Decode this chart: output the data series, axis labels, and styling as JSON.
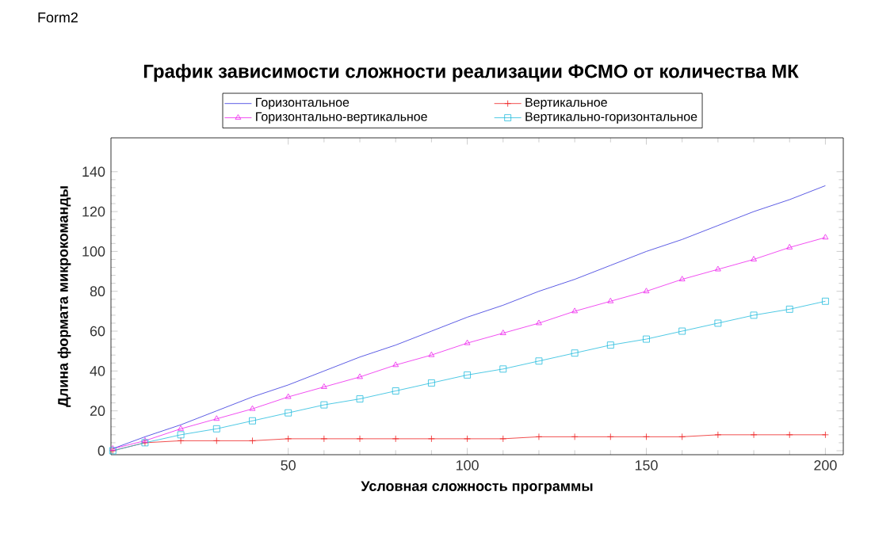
{
  "chart_data": {
    "type": "line",
    "title": "График зависимости сложности реализации ФСМО от количества МК",
    "xlabel": "Условная сложность программы",
    "ylabel": "Длина формата микрокоманды",
    "annotations": [
      "Form2"
    ],
    "x": [
      1,
      10,
      20,
      30,
      40,
      50,
      60,
      70,
      80,
      90,
      100,
      110,
      120,
      130,
      140,
      150,
      160,
      170,
      180,
      190,
      200
    ],
    "series": [
      {
        "name": "Горизонтальное",
        "color": "#3333dd",
        "marker": "none",
        "values": [
          1,
          7,
          13,
          20,
          27,
          33,
          40,
          47,
          53,
          60,
          67,
          73,
          80,
          86,
          93,
          100,
          106,
          113,
          120,
          126,
          133
        ]
      },
      {
        "name": "Вертикальное",
        "color": "#ee2222",
        "marker": "cross",
        "values": [
          0,
          4,
          5,
          5,
          5,
          6,
          6,
          6,
          6,
          6,
          6,
          6,
          7,
          7,
          7,
          7,
          7,
          8,
          8,
          8,
          8
        ]
      },
      {
        "name": "Горизонтально-вертикальное",
        "color": "#ee22ee",
        "marker": "triangle",
        "values": [
          1,
          5,
          11,
          16,
          21,
          27,
          32,
          37,
          43,
          48,
          54,
          59,
          64,
          70,
          75,
          80,
          86,
          91,
          96,
          102,
          107
        ]
      },
      {
        "name": "Вертикально-горизонтальное",
        "color": "#22bbdd",
        "marker": "square",
        "values": [
          0,
          4,
          8,
          11,
          15,
          19,
          23,
          26,
          30,
          34,
          38,
          41,
          45,
          49,
          53,
          56,
          60,
          64,
          68,
          71,
          75
        ]
      }
    ],
    "xlim": [
      0.5,
      205
    ],
    "ylim": [
      -2,
      157
    ],
    "xticks": [
      50,
      100,
      150,
      200
    ],
    "yticks": [
      0,
      20,
      40,
      60,
      80,
      100,
      120,
      140
    ],
    "grid": false,
    "legend": "top"
  }
}
